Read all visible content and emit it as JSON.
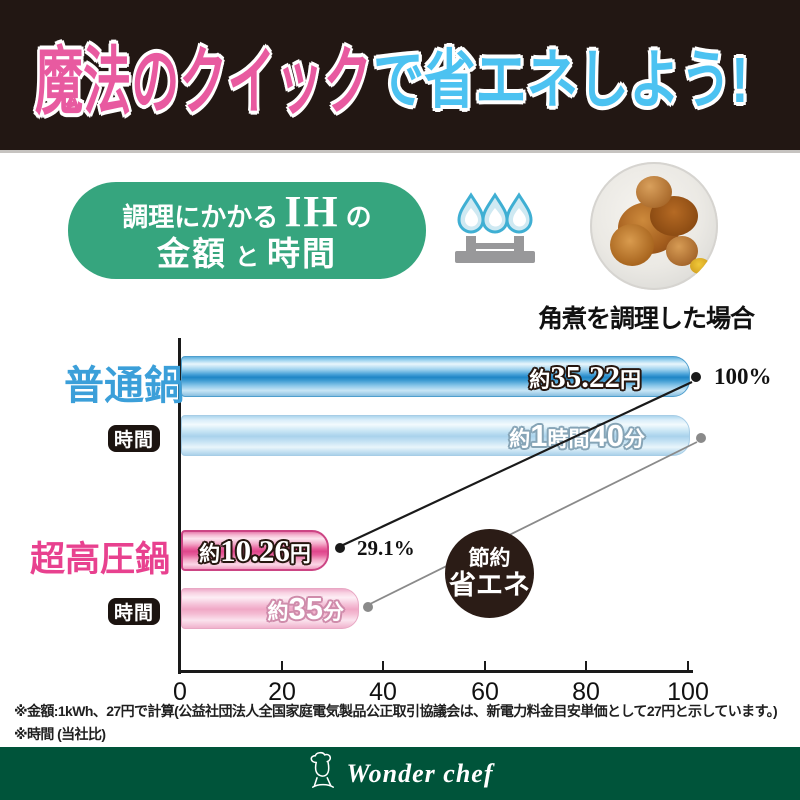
{
  "banner": {
    "pink_text": "魔法のクイック",
    "blue_text": "で省エネしよう!",
    "bg_color": "#221713",
    "pink_color": "#e85aa0",
    "blue_color": "#4cc2f1"
  },
  "header": {
    "box": {
      "line1_pre": "調理にかかる",
      "line1_ih": "IH",
      "line1_post": "の",
      "line2_a": "金額",
      "line2_mid": "と",
      "line2_b": "時間",
      "bg_color": "#36a57e"
    },
    "caption": "角煮を調理した場合"
  },
  "icons": {
    "burner": "gas-burner-icon",
    "food_photo": "kakuni-dish-photo",
    "chef": "chef-logo-icon"
  },
  "labels": {
    "pot_normal": "普通鍋",
    "pot_pressure": "超高圧鍋",
    "time_badge": "時間",
    "percent_normal": "100%",
    "percent_pressure": "29.1%",
    "save_line1": "節約",
    "save_line2": "省エネ"
  },
  "bar_text": {
    "cost_normal": {
      "p0": "約",
      "p1": "35.22",
      "p2": "円"
    },
    "time_normal": {
      "p0": "約",
      "p1": "1",
      "p2": "時間",
      "p3": "40",
      "p4": "分"
    },
    "cost_pressure": {
      "p0": "約",
      "p1": "10.26",
      "p2": "円"
    },
    "time_pressure": {
      "p0": "約",
      "p1": "35",
      "p2": "分"
    }
  },
  "axis": {
    "ticks": [
      "0",
      "20",
      "40",
      "60",
      "80",
      "100"
    ]
  },
  "chart_data": {
    "type": "bar",
    "orientation": "horizontal",
    "title": "調理にかかるIHの金額と時間(角煮を調理した場合)",
    "xlim": [
      0,
      100
    ],
    "x_ticks": [
      0,
      20,
      40,
      60,
      80,
      100
    ],
    "grid": false,
    "groups": [
      {
        "name": "普通鍋",
        "bars": [
          {
            "metric": "金額",
            "label": "約35.22円",
            "axis_value": 100,
            "annotation": "100%",
            "color": "#1f86c6"
          },
          {
            "metric": "時間",
            "label": "約1時間40分",
            "axis_value": 100,
            "annotation": null,
            "color": "#a9d2ec"
          }
        ]
      },
      {
        "name": "超高圧鍋",
        "bars": [
          {
            "metric": "金額",
            "label": "約10.26円",
            "axis_value": 29.1,
            "annotation": "29.1%",
            "color": "#e0468b"
          },
          {
            "metric": "時間",
            "label": "約35分",
            "axis_value": 35,
            "annotation": null,
            "color": "#f0a8c6"
          }
        ]
      }
    ],
    "callout_badge": "節約省エネ"
  },
  "footnotes": {
    "line1": "※金額:1kWh、27円で計算(公益社団法人全国家庭電気製品公正取引協議会は、新電力料金目安単価として27円と示しています。)",
    "line2": "※時間 (当社比)"
  },
  "footer": {
    "brand": "Wonder chef",
    "bg_color": "#00543a"
  }
}
